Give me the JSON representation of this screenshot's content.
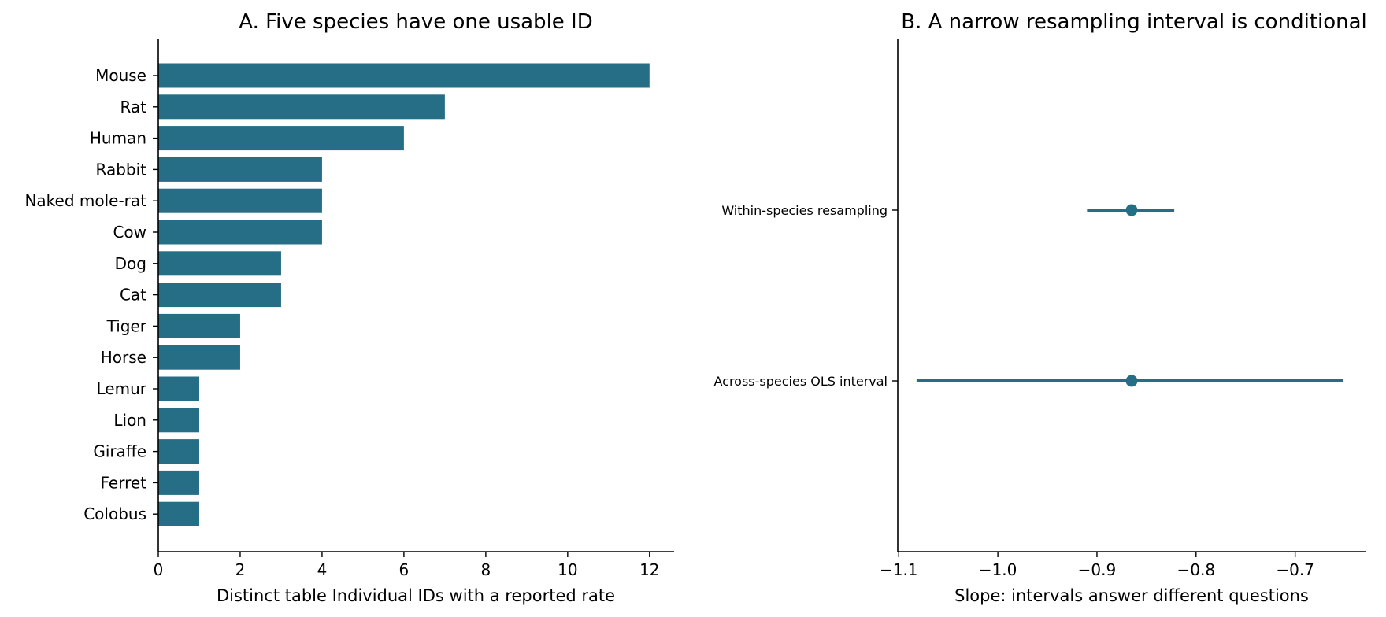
{
  "colors": {
    "accent": "#266e86",
    "axis": "#000000"
  },
  "chart_data": [
    {
      "type": "bar",
      "orientation": "horizontal",
      "title": "A. Five species have one usable ID",
      "xlabel": "Distinct table Individual IDs with a reported rate",
      "ylabel": "",
      "categories": [
        "Mouse",
        "Rat",
        "Human",
        "Rabbit",
        "Naked mole-rat",
        "Cow",
        "Dog",
        "Cat",
        "Tiger",
        "Horse",
        "Lemur",
        "Lion",
        "Giraffe",
        "Ferret",
        "Colobus"
      ],
      "values": [
        12,
        7,
        6,
        4,
        4,
        4,
        3,
        3,
        2,
        2,
        1,
        1,
        1,
        1,
        1
      ],
      "xlim": [
        0,
        12.6
      ],
      "xticks": [
        0,
        2,
        4,
        6,
        8,
        10,
        12
      ],
      "xtick_labels": [
        "0",
        "2",
        "4",
        "6",
        "8",
        "10",
        "12"
      ],
      "grid": false
    },
    {
      "type": "scatter",
      "subtype": "interval",
      "title": "B. A narrow resampling interval is conditional",
      "xlabel": "Slope: intervals answer different questions",
      "ylabel": "",
      "categories": [
        "Within-species resampling",
        "Across-species OLS interval"
      ],
      "estimates": [
        -0.865,
        -0.865
      ],
      "lower": [
        -0.91,
        -1.082
      ],
      "upper": [
        -0.822,
        -0.652
      ],
      "xlim": [
        -1.101,
        -0.629
      ],
      "xticks": [
        -1.1,
        -1.0,
        -0.9,
        -0.8,
        -0.7
      ],
      "xtick_labels": [
        "−1.1",
        "−1.0",
        "−0.9",
        "−0.8",
        "−0.7"
      ],
      "grid": false
    }
  ]
}
